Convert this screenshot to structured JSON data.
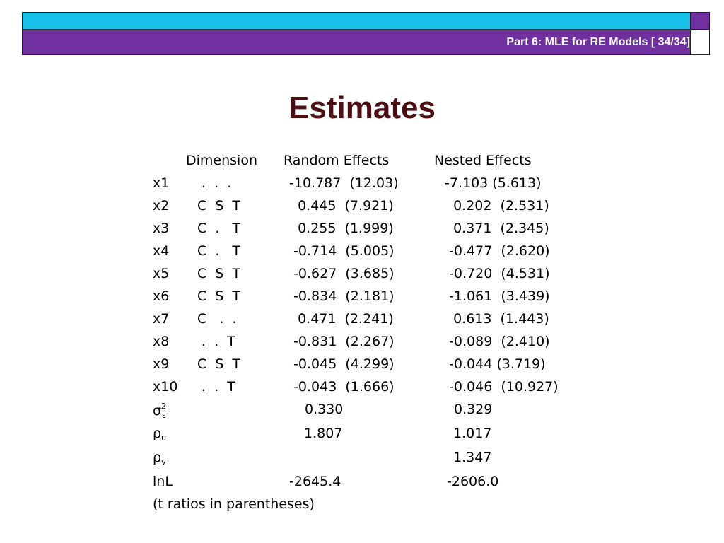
{
  "header": {
    "label": "Part 6: MLE for RE Models [ 34/34]",
    "colors": {
      "top_bar": "#16c0e8",
      "main_bar": "#7030a0",
      "title": "#4b0f14"
    }
  },
  "title": "Estimates",
  "table": {
    "headers": {
      "dimension": "Dimension",
      "random": "Random Effects",
      "nested": "Nested Effects"
    },
    "rows": [
      {
        "var": "x1",
        "dim": " .  .  .",
        "re": "-10.787  (12.03)",
        "ne": "-7.103 (5.613)"
      },
      {
        "var": "x2",
        "dim": "C  S  T",
        "re": "  0.445  (7.921)",
        "ne": "  0.202  (2.531)"
      },
      {
        "var": "x3",
        "dim": "C  .   T",
        "re": "  0.255  (1.999)",
        "ne": "  0.371  (2.345)"
      },
      {
        "var": "x4",
        "dim": "C  .   T",
        "re": " -0.714  (5.005)",
        "ne": " -0.477  (2.620)"
      },
      {
        "var": "x5",
        "dim": "C  S  T",
        "re": " -0.627  (3.685)",
        "ne": " -0.720  (4.531)"
      },
      {
        "var": "x6",
        "dim": "C  S  T",
        "re": " -0.834  (2.181)",
        "ne": " -1.061  (3.439)"
      },
      {
        "var": "x7",
        "dim": "C   .  .",
        "re": "  0.471  (2.241)",
        "ne": "  0.613  (1.443)"
      },
      {
        "var": "x8",
        "dim": " .  .  T",
        "re": " -0.831  (2.267)",
        "ne": " -0.089  (2.410)"
      },
      {
        "var": "x9",
        "dim": "C  S  T",
        "re": " -0.045  (4.299)",
        "ne": " -0.044 (3.719)"
      },
      {
        "var": "x10",
        "dim": " .  .  T",
        "re": " -0.043  (1.666)",
        "ne": " -0.046  (10.927)"
      }
    ],
    "params": {
      "sigma": {
        "symbol": "σ",
        "sup": "2",
        "sub": "ε",
        "re": "0.330",
        "ne": "0.329"
      },
      "rho_u": {
        "symbol": "ρ",
        "sub": "u",
        "re": "1.807",
        "ne": "1.017"
      },
      "rho_v": {
        "symbol": "ρ",
        "sub": "v",
        "re": "",
        "ne": "1.347"
      }
    },
    "lnl": {
      "label": "lnL",
      "re": "-2645.4",
      "ne": "-2606.0"
    },
    "note": "(t ratios in parentheses)"
  }
}
